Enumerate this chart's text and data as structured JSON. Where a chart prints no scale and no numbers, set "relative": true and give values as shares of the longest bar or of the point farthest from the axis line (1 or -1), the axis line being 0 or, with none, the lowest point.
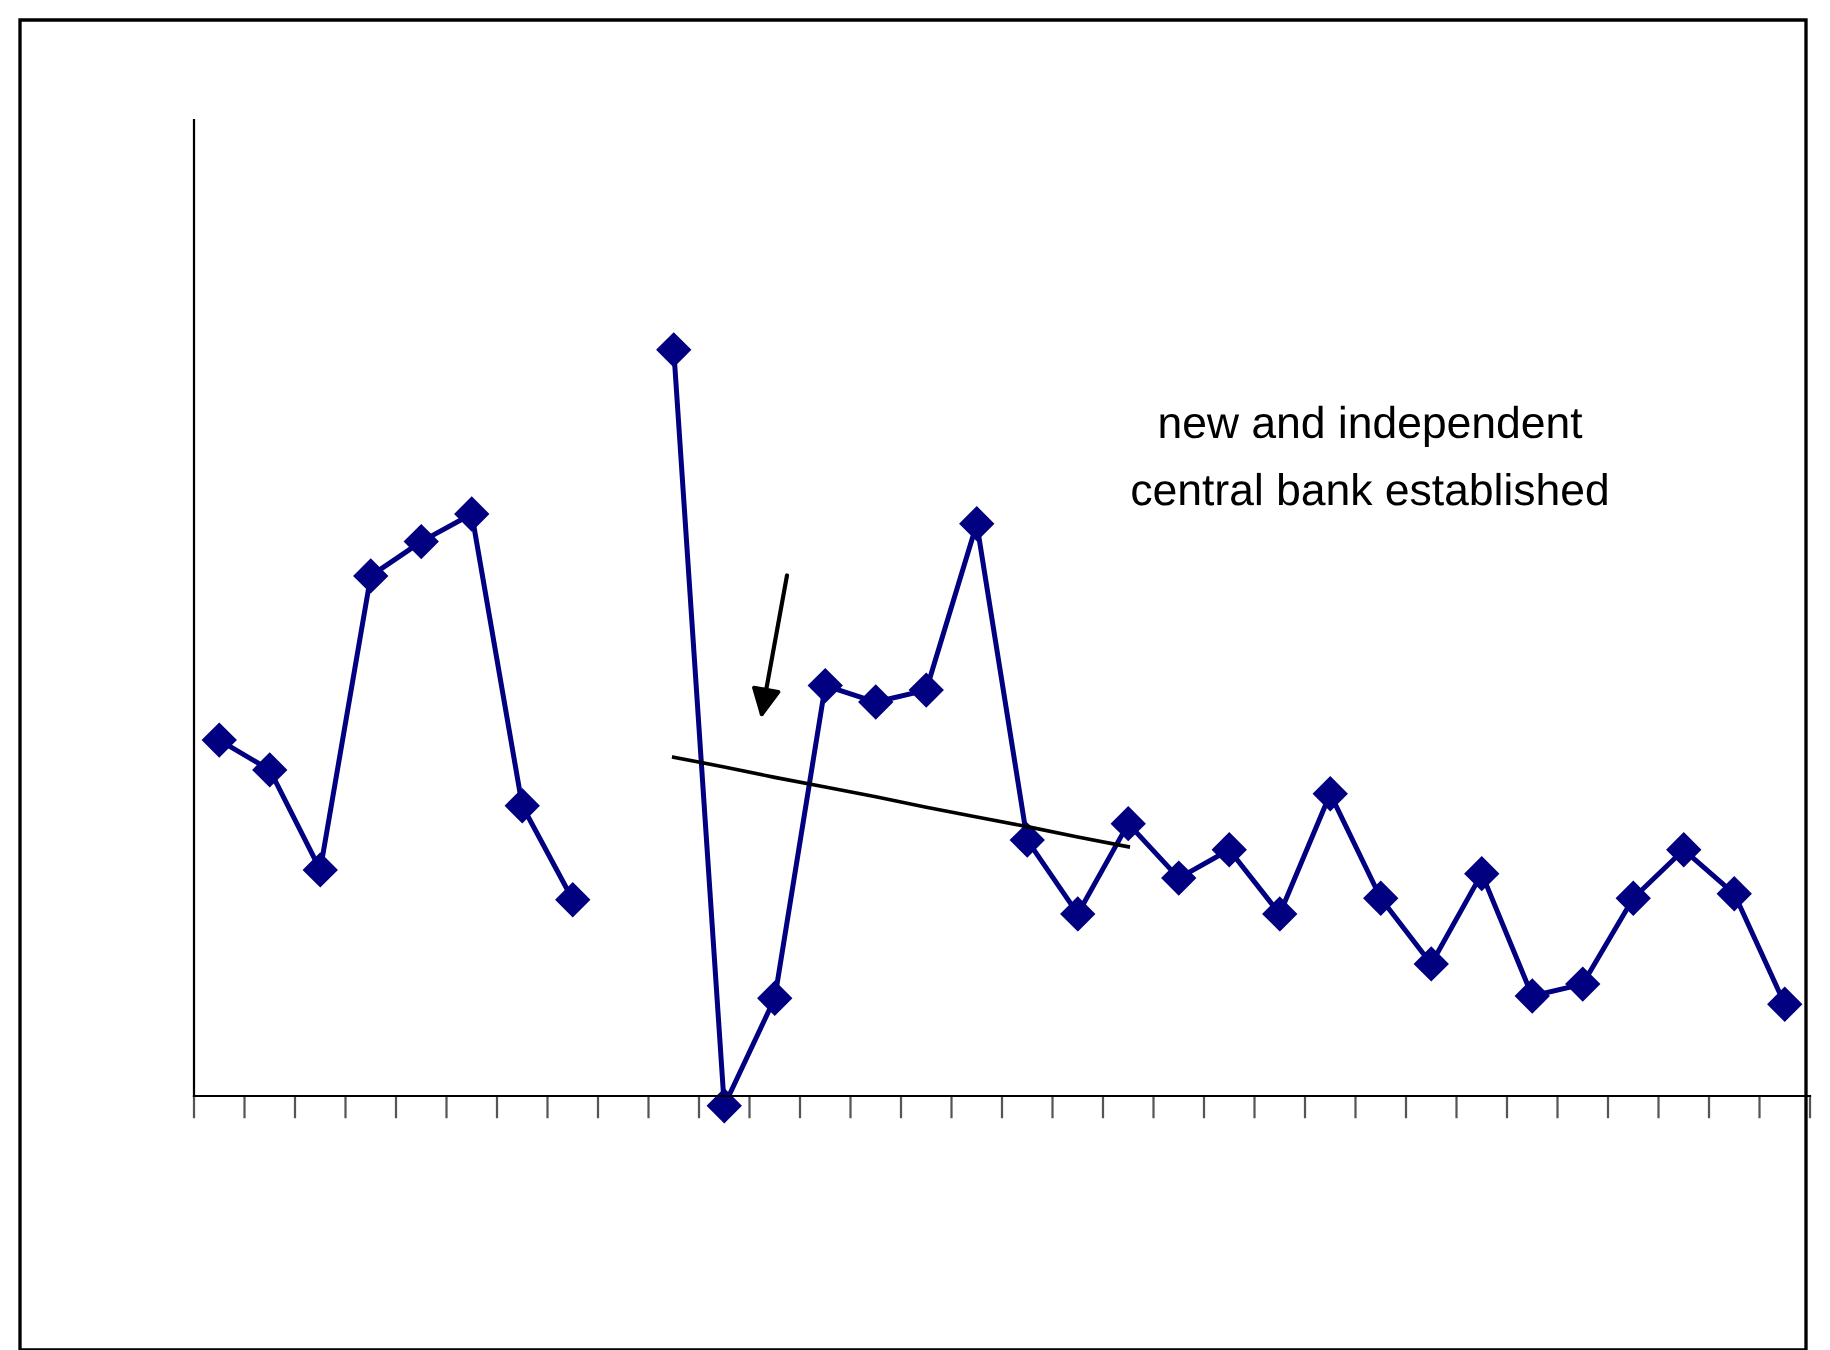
{
  "chart_data": {
    "type": "line",
    "relative": true,
    "marker": "diamond",
    "line_style": "solid",
    "grid": false,
    "categories": [
      null,
      null,
      null,
      null,
      null,
      null,
      null,
      null,
      null,
      null,
      null,
      null,
      null,
      null,
      null,
      null,
      null,
      null,
      null,
      null,
      null,
      null,
      null,
      null,
      null,
      null,
      null,
      null,
      null,
      null,
      null,
      null
    ],
    "series": [
      {
        "color": "#000080",
        "values": [
          0.477,
          0.437,
          0.303,
          0.697,
          0.743,
          0.78,
          0.389,
          0.263,
          null,
          1,
          -0.013,
          0.131,
          0.55,
          0.528,
          0.544,
          0.767,
          0.343,
          0.244,
          0.365,
          0.292,
          0.33,
          0.244,
          0.405,
          0.265,
          0.177,
          0.298,
          0.134,
          0.15,
          0.265,
          0.33,
          0.271,
          0.123
        ]
      },
      {
        "type": "line",
        "marker": "none",
        "color": "#000000",
        "values": [
          null,
          null,
          null,
          null,
          null,
          null,
          null,
          null,
          null,
          0.454,
          0.441,
          0.427,
          0.414,
          0.401,
          0.387,
          0.374,
          0.361,
          0.347,
          0.334,
          null,
          null,
          null,
          null,
          null,
          null,
          null,
          null,
          null,
          null,
          null,
          null,
          null
        ]
      }
    ],
    "annotations": [
      "new and independent\ncentral bank established"
    ]
  }
}
